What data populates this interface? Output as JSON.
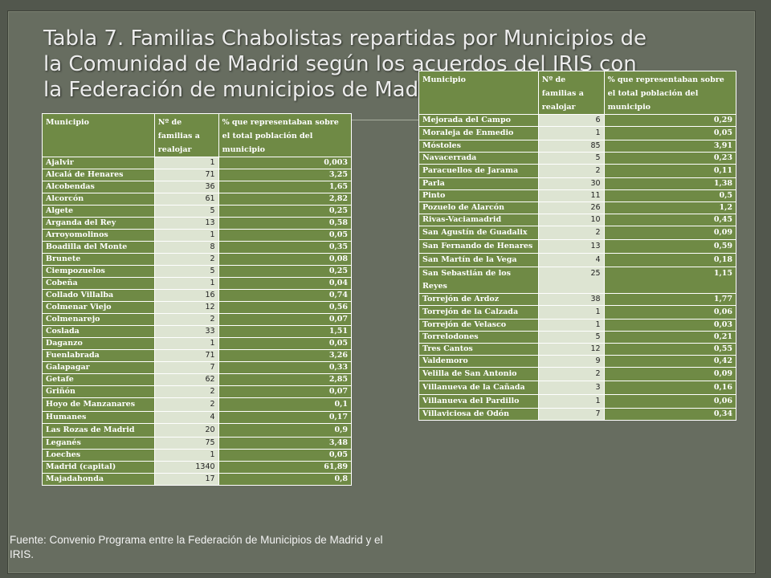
{
  "title": "Tabla 7. Familias Chabolistas repartidas por Municipios de la Comunidad de Madrid según los acuerdos del IRIS con la Federación de municipios de Madrid.",
  "headers": {
    "municipio": "Municipio",
    "familias": "Nº de familias a realojar",
    "porcentaje": "% que representaban sobre el total población del municipio"
  },
  "left_rows": [
    {
      "municipio": "Ajalvir",
      "familias": "1",
      "porcentaje": "0,003"
    },
    {
      "municipio": "Alcalá de Henares",
      "familias": "71",
      "porcentaje": "3,25"
    },
    {
      "municipio": "Alcobendas",
      "familias": "36",
      "porcentaje": "1,65"
    },
    {
      "municipio": "Alcorcón",
      "familias": "61",
      "porcentaje": "2,82"
    },
    {
      "municipio": "Algete",
      "familias": "5",
      "porcentaje": "0,25"
    },
    {
      "municipio": "Arganda del Rey",
      "familias": "13",
      "porcentaje": "0,58"
    },
    {
      "municipio": "Arroyomolinos",
      "familias": "1",
      "porcentaje": "0,05"
    },
    {
      "municipio": "Boadilla del Monte",
      "familias": "8",
      "porcentaje": "0,35"
    },
    {
      "municipio": "Brunete",
      "familias": "2",
      "porcentaje": "0,08"
    },
    {
      "municipio": "Ciempozuelos",
      "familias": "5",
      "porcentaje": "0,25"
    },
    {
      "municipio": "Cobeña",
      "familias": "1",
      "porcentaje": "0,04"
    },
    {
      "municipio": "Collado Villalba",
      "familias": "16",
      "porcentaje": "0,74"
    },
    {
      "municipio": "Colmenar Viejo",
      "familias": "12",
      "porcentaje": "0,56"
    },
    {
      "municipio": "Colmenarejo",
      "familias": "2",
      "porcentaje": "0,07"
    },
    {
      "municipio": "Coslada",
      "familias": "33",
      "porcentaje": "1,51"
    },
    {
      "municipio": "Daganzo",
      "familias": "1",
      "porcentaje": "0,05"
    },
    {
      "municipio": "Fuenlabrada",
      "familias": "71",
      "porcentaje": "3,26"
    },
    {
      "municipio": "Galapagar",
      "familias": "7",
      "porcentaje": "0,33"
    },
    {
      "municipio": "Getafe",
      "familias": "62",
      "porcentaje": "2,85"
    },
    {
      "municipio": "Griñón",
      "familias": "2",
      "porcentaje": "0,07"
    },
    {
      "municipio": "Hoyo de Manzanares",
      "familias": "2",
      "porcentaje": "0,1",
      "wrap": true
    },
    {
      "municipio": "Humanes",
      "familias": "4",
      "porcentaje": "0,17"
    },
    {
      "municipio": "Las Rozas de Madrid",
      "familias": "20",
      "porcentaje": "0,9",
      "wrap": true
    },
    {
      "municipio": "Leganés",
      "familias": "75",
      "porcentaje": "3,48"
    },
    {
      "municipio": "Loeches",
      "familias": "1",
      "porcentaje": "0,05"
    },
    {
      "municipio": "Madrid (capital)",
      "familias": "1340",
      "porcentaje": "61,89"
    },
    {
      "municipio": "Majadahonda",
      "familias": "17",
      "porcentaje": "0,8"
    }
  ],
  "right_rows": [
    {
      "municipio": "Mejorada del Campo",
      "familias": "6",
      "porcentaje": "0,29"
    },
    {
      "municipio": "Moraleja de Enmedio",
      "familias": "1",
      "porcentaje": "0,05",
      "wrap": true
    },
    {
      "municipio": "Móstoles",
      "familias": "85",
      "porcentaje": "3,91"
    },
    {
      "municipio": "Navacerrada",
      "familias": "5",
      "porcentaje": "0,23"
    },
    {
      "municipio": "Paracuellos de Jarama",
      "familias": "2",
      "porcentaje": "0,11",
      "wrap": true
    },
    {
      "municipio": "Parla",
      "familias": "30",
      "porcentaje": "1,38"
    },
    {
      "municipio": "Pinto",
      "familias": "11",
      "porcentaje": "0,5"
    },
    {
      "municipio": "Pozuelo de Alarcón",
      "familias": "26",
      "porcentaje": "1,2"
    },
    {
      "municipio": "Rivas-Vaciamadrid",
      "familias": "10",
      "porcentaje": "0,45"
    },
    {
      "municipio": "San Agustín de Guadalix",
      "familias": "2",
      "porcentaje": "0,09",
      "wrap": true
    },
    {
      "municipio": "San Fernando de Henares",
      "familias": "13",
      "porcentaje": "0,59",
      "wrap": true
    },
    {
      "municipio": "San Martín de la Vega",
      "familias": "4",
      "porcentaje": "0,18",
      "wrap": true
    },
    {
      "municipio": "San Sebastián de los Reyes",
      "familias": "25",
      "porcentaje": "1,15",
      "wrap": true
    },
    {
      "municipio": "Torrejón de Ardoz",
      "familias": "38",
      "porcentaje": "1,77"
    },
    {
      "municipio": "Torrejón de la Calzada",
      "familias": "1",
      "porcentaje": "0,06",
      "wrap": true
    },
    {
      "municipio": "Torrejón de Velasco",
      "familias": "1",
      "porcentaje": "0,03"
    },
    {
      "municipio": "Torrelodones",
      "familias": "5",
      "porcentaje": "0,21"
    },
    {
      "municipio": "Tres Cantos",
      "familias": "12",
      "porcentaje": "0,55"
    },
    {
      "municipio": "Valdemoro",
      "familias": "9",
      "porcentaje": "0,42"
    },
    {
      "municipio": "Velilla de San Antonio",
      "familias": "2",
      "porcentaje": "0,09",
      "wrap": true
    },
    {
      "municipio": "Villanueva de la Cañada",
      "familias": "3",
      "porcentaje": "0,16",
      "wrap": true
    },
    {
      "municipio": "Villanueva del Pardillo",
      "familias": "1",
      "porcentaje": "0,06",
      "wrap": true
    },
    {
      "municipio": "Villaviciosa de Odón",
      "familias": "7",
      "porcentaje": "0,34"
    }
  ],
  "source": "Fuente: Convenio Programa entre la Federación de Municipios de Madrid y el IRIS."
}
